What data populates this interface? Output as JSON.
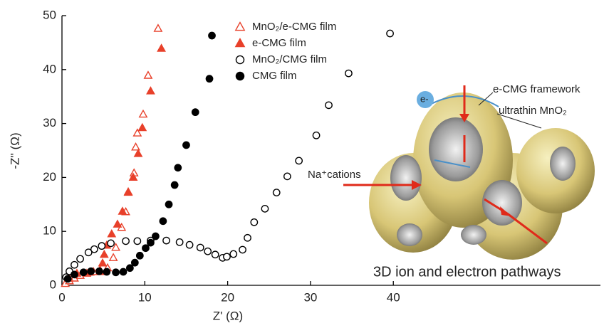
{
  "chart_data": {
    "type": "scatter",
    "xlabel": "Z' (Ω)",
    "ylabel": "-Z'' (Ω)",
    "xlim": [
      0,
      65
    ],
    "xticks": [
      0,
      10,
      20,
      30,
      40
    ],
    "ylim": [
      0,
      50
    ],
    "yticks": [
      0,
      10,
      20,
      30,
      40,
      50
    ],
    "series": [
      {
        "name": "MnO₂/e-CMG film",
        "color": "#e8402a",
        "marker": "triangle-open",
        "x": [
          0.4,
          0.9,
          1.5,
          2.2,
          3.0,
          3.8,
          4.6,
          5.5,
          6.2,
          6.5,
          7.2,
          7.7,
          8.0,
          8.7,
          8.9,
          9.1,
          9.8,
          10.4,
          11.6
        ],
        "y": [
          0.3,
          0.8,
          1.3,
          1.8,
          2.2,
          2.5,
          2.8,
          3.2,
          5.1,
          7.0,
          10.7,
          13.6,
          17.2,
          20.8,
          25.6,
          28.2,
          31.7,
          38.9,
          47.6
        ]
      },
      {
        "name": "e-CMG film",
        "color": "#e8402a",
        "marker": "triangle",
        "x": [
          0.8,
          1.8,
          3.4,
          4.6,
          4.9,
          5.1,
          5.4,
          6.0,
          6.7,
          7.3,
          8.0,
          8.6,
          9.2,
          9.7,
          10.7,
          12.0
        ],
        "y": [
          1.5,
          2.2,
          2.4,
          2.5,
          4.1,
          5.7,
          7.4,
          9.5,
          11.3,
          13.7,
          17.3,
          20.0,
          24.4,
          29.2,
          36.0,
          43.9
        ]
      },
      {
        "name": "MnO₂/CMG film",
        "color": "#000000",
        "marker": "circle-open",
        "x": [
          0.5,
          0.9,
          1.5,
          2.2,
          3.2,
          3.9,
          4.8,
          5.9,
          7.7,
          9.1,
          10.7,
          12.6,
          14.2,
          15.4,
          16.7,
          17.6,
          18.5,
          19.4,
          19.9,
          20.7,
          21.8,
          22.4,
          23.2,
          24.5,
          25.9,
          27.2,
          28.6,
          30.7,
          32.2,
          34.6,
          39.6
        ],
        "y": [
          1.5,
          2.6,
          3.8,
          4.9,
          6.1,
          6.7,
          7.3,
          7.8,
          8.2,
          8.2,
          8.3,
          8.3,
          8.0,
          7.5,
          7.0,
          6.3,
          5.7,
          5.1,
          5.3,
          5.8,
          6.6,
          8.8,
          11.7,
          14.2,
          17.2,
          20.2,
          23.1,
          27.8,
          33.4,
          39.3,
          46.7
        ]
      },
      {
        "name": "CMG film",
        "color": "#000000",
        "marker": "circle",
        "x": [
          0.7,
          1.5,
          2.6,
          3.5,
          4.5,
          5.4,
          6.5,
          7.4,
          8.2,
          8.8,
          9.4,
          10.1,
          10.7,
          11.3,
          12.2,
          12.9,
          13.6,
          14.0,
          15.0,
          16.1,
          17.8,
          18.1
        ],
        "y": [
          1.2,
          2.0,
          2.4,
          2.6,
          2.6,
          2.5,
          2.4,
          2.5,
          3.2,
          4.2,
          5.5,
          6.9,
          7.9,
          9.1,
          11.9,
          15.0,
          18.6,
          21.8,
          26.0,
          32.1,
          38.3,
          46.3
        ]
      }
    ],
    "annotations": [
      "e-CMG framework",
      "ultrathin MnO₂",
      "Na⁺cations",
      "e-",
      "3D ion and electron pathways"
    ]
  }
}
